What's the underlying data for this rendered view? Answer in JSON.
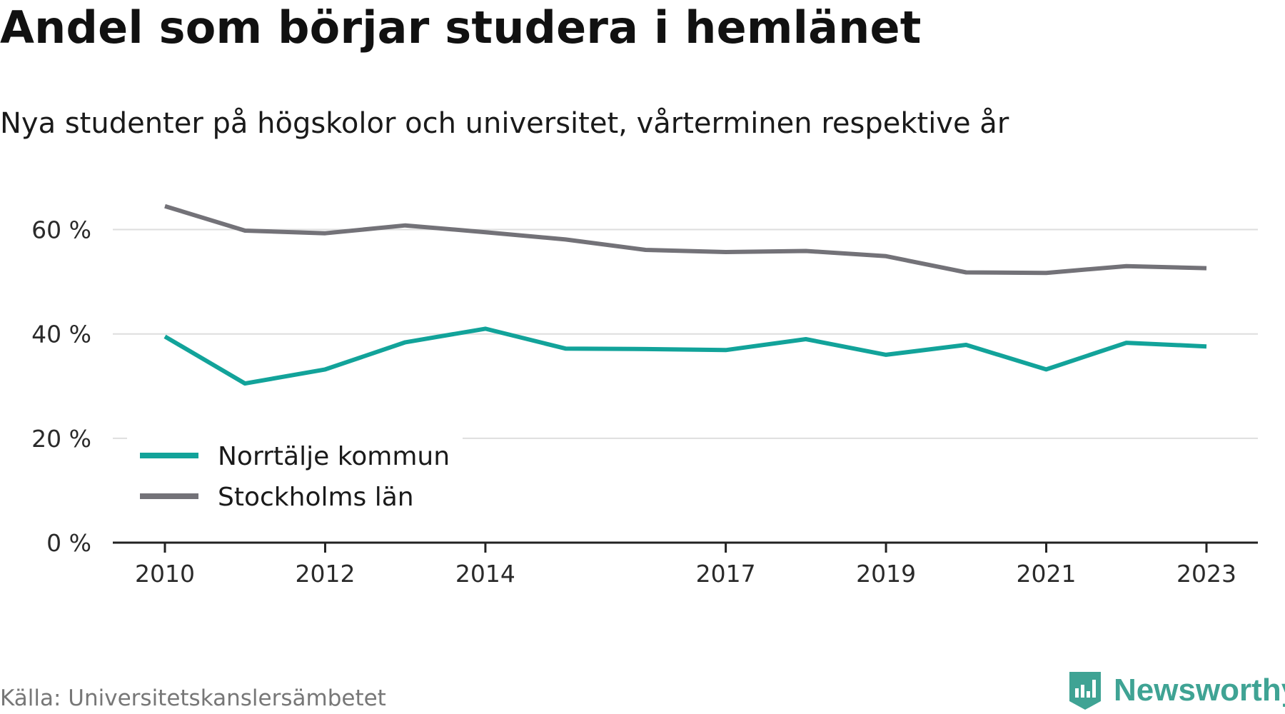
{
  "header": {
    "title": "Andel som börjar studera i hemlänet",
    "subtitle": "Nya studenter på högskolor och universitet, vårterminen respektive år"
  },
  "footer": {
    "source": "Källa: Universitetskanslersämbetet",
    "brand": "Newsworthy",
    "brand_icon": "chart-badge-icon",
    "brand_color": "#3fa394"
  },
  "chart_data": {
    "type": "line",
    "title": "Andel som börjar studera i hemlänet",
    "subtitle": "Nya studenter på högskolor och universitet, vårterminen respektive år",
    "xlabel": "",
    "ylabel": "",
    "x": [
      2010,
      2011,
      2012,
      2013,
      2014,
      2015,
      2016,
      2017,
      2018,
      2019,
      2020,
      2021,
      2022,
      2023
    ],
    "x_tick_labels": [
      "2010",
      "2012",
      "2014",
      "2017",
      "2019",
      "2021",
      "2023"
    ],
    "y_tick_labels": [
      "0 %",
      "20 %",
      "40 %",
      "60 %"
    ],
    "y_ticks": [
      0,
      20,
      40,
      60
    ],
    "ylim": [
      0,
      65
    ],
    "grid": "horizontal",
    "legend_position": "bottom-left",
    "series": [
      {
        "name": "Norrtälje kommun",
        "color": "#12a39a",
        "values": [
          39.5,
          30.5,
          33.2,
          38.4,
          41.0,
          37.2,
          37.1,
          36.9,
          39.0,
          36.0,
          37.9,
          33.2,
          38.3,
          37.6
        ]
      },
      {
        "name": "Stockholms län",
        "color": "#737278",
        "values": [
          64.5,
          59.8,
          59.3,
          60.8,
          59.5,
          58.1,
          56.1,
          55.7,
          55.9,
          54.9,
          51.8,
          51.7,
          53.0,
          52.6
        ]
      }
    ]
  }
}
